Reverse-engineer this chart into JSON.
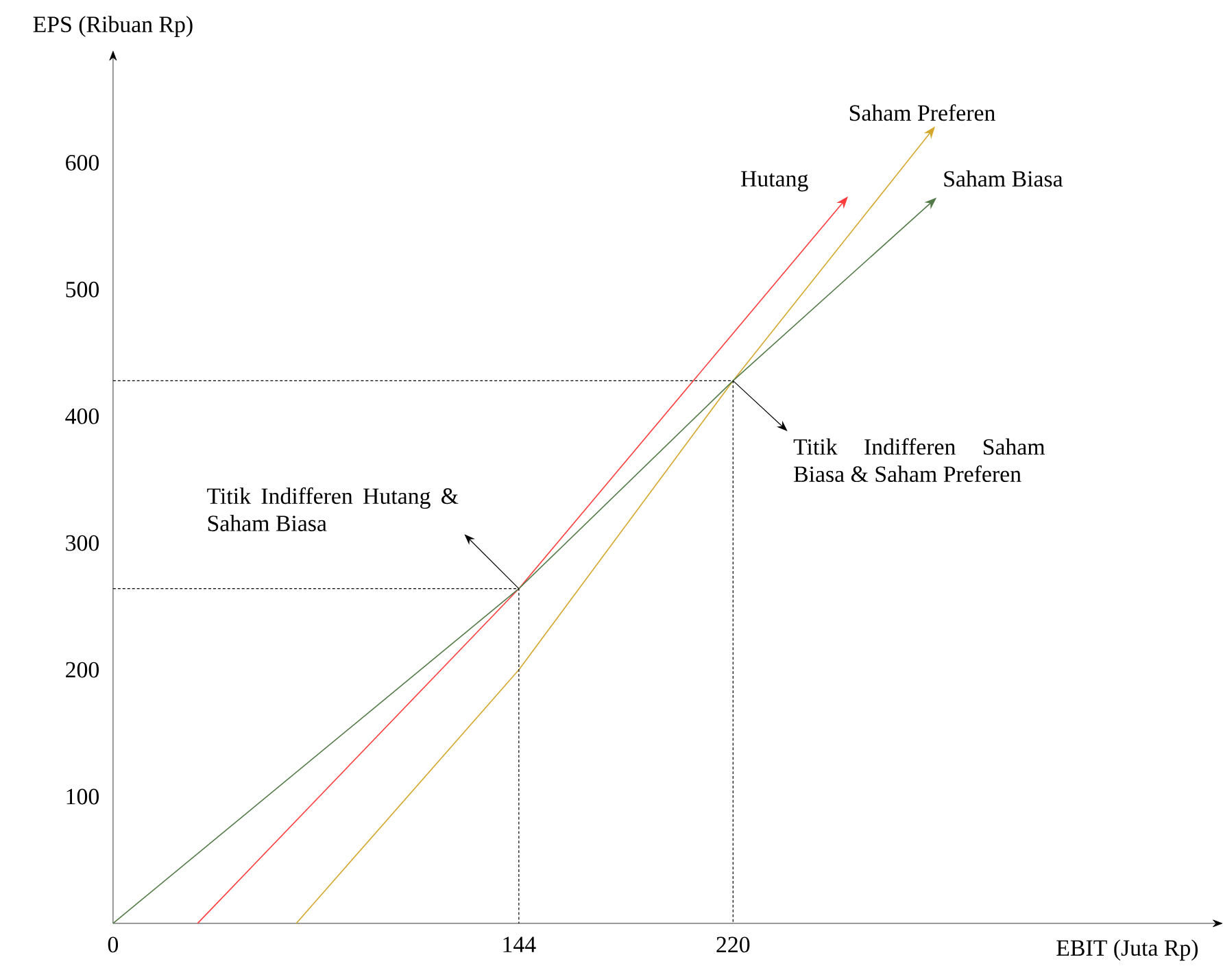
{
  "chart_data": {
    "type": "line",
    "xlabel": "EBIT (Juta Rp)",
    "ylabel": "EPS (Ribuan Rp)",
    "xlim": [
      0,
      390
    ],
    "ylim": [
      0,
      680
    ],
    "xticks": [
      0,
      144,
      220
    ],
    "yticks": [
      100,
      200,
      300,
      400,
      500,
      600
    ],
    "grid": false,
    "legend": false,
    "marker": "none",
    "series": [
      {
        "name": "Hutang",
        "color": "#ff3b3b",
        "x": [
          30,
          144,
          258
        ],
        "values": [
          0,
          264,
          566
        ]
      },
      {
        "name": "Saham Preferen",
        "color": "#d4a72c",
        "x": [
          65,
          144,
          220,
          289
        ],
        "values": [
          0,
          200,
          428,
          621
        ]
      },
      {
        "name": "Saham Biasa",
        "color": "#527a47",
        "x": [
          0,
          144,
          220,
          289
        ],
        "values": [
          0,
          264,
          428,
          566
        ]
      },
      {
        "color": "#000000",
        "line_style": "dashed",
        "x": [
          0,
          144,
          144
        ],
        "values": [
          264,
          264,
          0
        ]
      },
      {
        "color": "#000000",
        "line_style": "dashed",
        "x": [
          0,
          220,
          220
        ],
        "values": [
          428,
          428,
          0
        ]
      }
    ],
    "annotations": [
      {
        "text": "Titik Indifferen Hutang & Saham Biasa",
        "x": 144,
        "y": 264
      },
      {
        "text": "Titik Indifferen Saham Biasa & Saham Preferen",
        "x": 220,
        "y": 428
      }
    ]
  }
}
